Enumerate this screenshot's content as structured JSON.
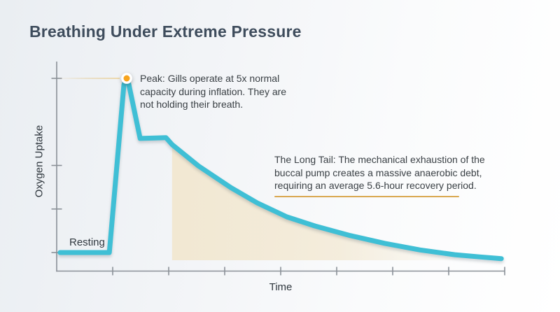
{
  "title": "Breathing Under Extreme Pressure",
  "colors": {
    "curve": "#3FBFD5",
    "dot": "#F7A41E",
    "underline": "#D9A851",
    "area": "#F2E7CF",
    "axis": "#8A9097",
    "title": "#3E4C5C",
    "text": "#3A4045",
    "label": "#2F373E"
  },
  "chart_data": {
    "type": "line",
    "title": "Breathing Under Extreme Pressure",
    "xlabel": "Time",
    "ylabel": "Oxygen Uptake",
    "grid": "off",
    "x_axis": {
      "ticks": 8,
      "unit_range": [
        0,
        8
      ],
      "tick_labels_shown": false
    },
    "y_axis": {
      "tick_values": [
        1,
        2,
        3,
        5
      ],
      "unit": "multiple of resting uptake",
      "tick_labels_shown": false
    },
    "series": [
      {
        "name": "Oxygen uptake over time",
        "color": "#3FBFD5",
        "points": [
          [
            0.06,
            1.0
          ],
          [
            0.94,
            1.0
          ],
          [
            1.2,
            4.85
          ],
          [
            1.25,
            5.0
          ],
          [
            1.29,
            4.85
          ],
          [
            1.49,
            3.62
          ],
          [
            1.76,
            3.63
          ],
          [
            1.95,
            3.64
          ],
          [
            2.06,
            3.48
          ],
          [
            2.53,
            2.99
          ],
          [
            3.11,
            2.49
          ],
          [
            3.58,
            2.14
          ],
          [
            4.11,
            1.82
          ],
          [
            4.61,
            1.61
          ],
          [
            5.24,
            1.39
          ],
          [
            5.86,
            1.21
          ],
          [
            6.49,
            1.06
          ],
          [
            7.11,
            0.95
          ],
          [
            7.55,
            0.9
          ],
          [
            7.94,
            0.86
          ]
        ]
      }
    ],
    "marker": {
      "label": "Peak",
      "point": [
        1.25,
        5.0
      ],
      "color": "#F7A41E"
    },
    "area": {
      "label": "anaerobic debt / long tail",
      "from_x": 2.06,
      "color": "#F2E7CF",
      "fade": "right"
    },
    "inline_labels": {
      "resting": "Resting"
    },
    "annotations": [
      {
        "id": "peak",
        "lines": [
          "Peak: Gills operate at 5x normal",
          "capacity during inflation. They are",
          "not holding their breath."
        ]
      },
      {
        "id": "long-tail",
        "underline": true,
        "lines": [
          "The Long Tail: The mechanical exhaustion of the",
          "buccal pump creates a massive anaerobic debt,",
          "requiring an average 5.6-hour recovery period."
        ]
      }
    ]
  }
}
